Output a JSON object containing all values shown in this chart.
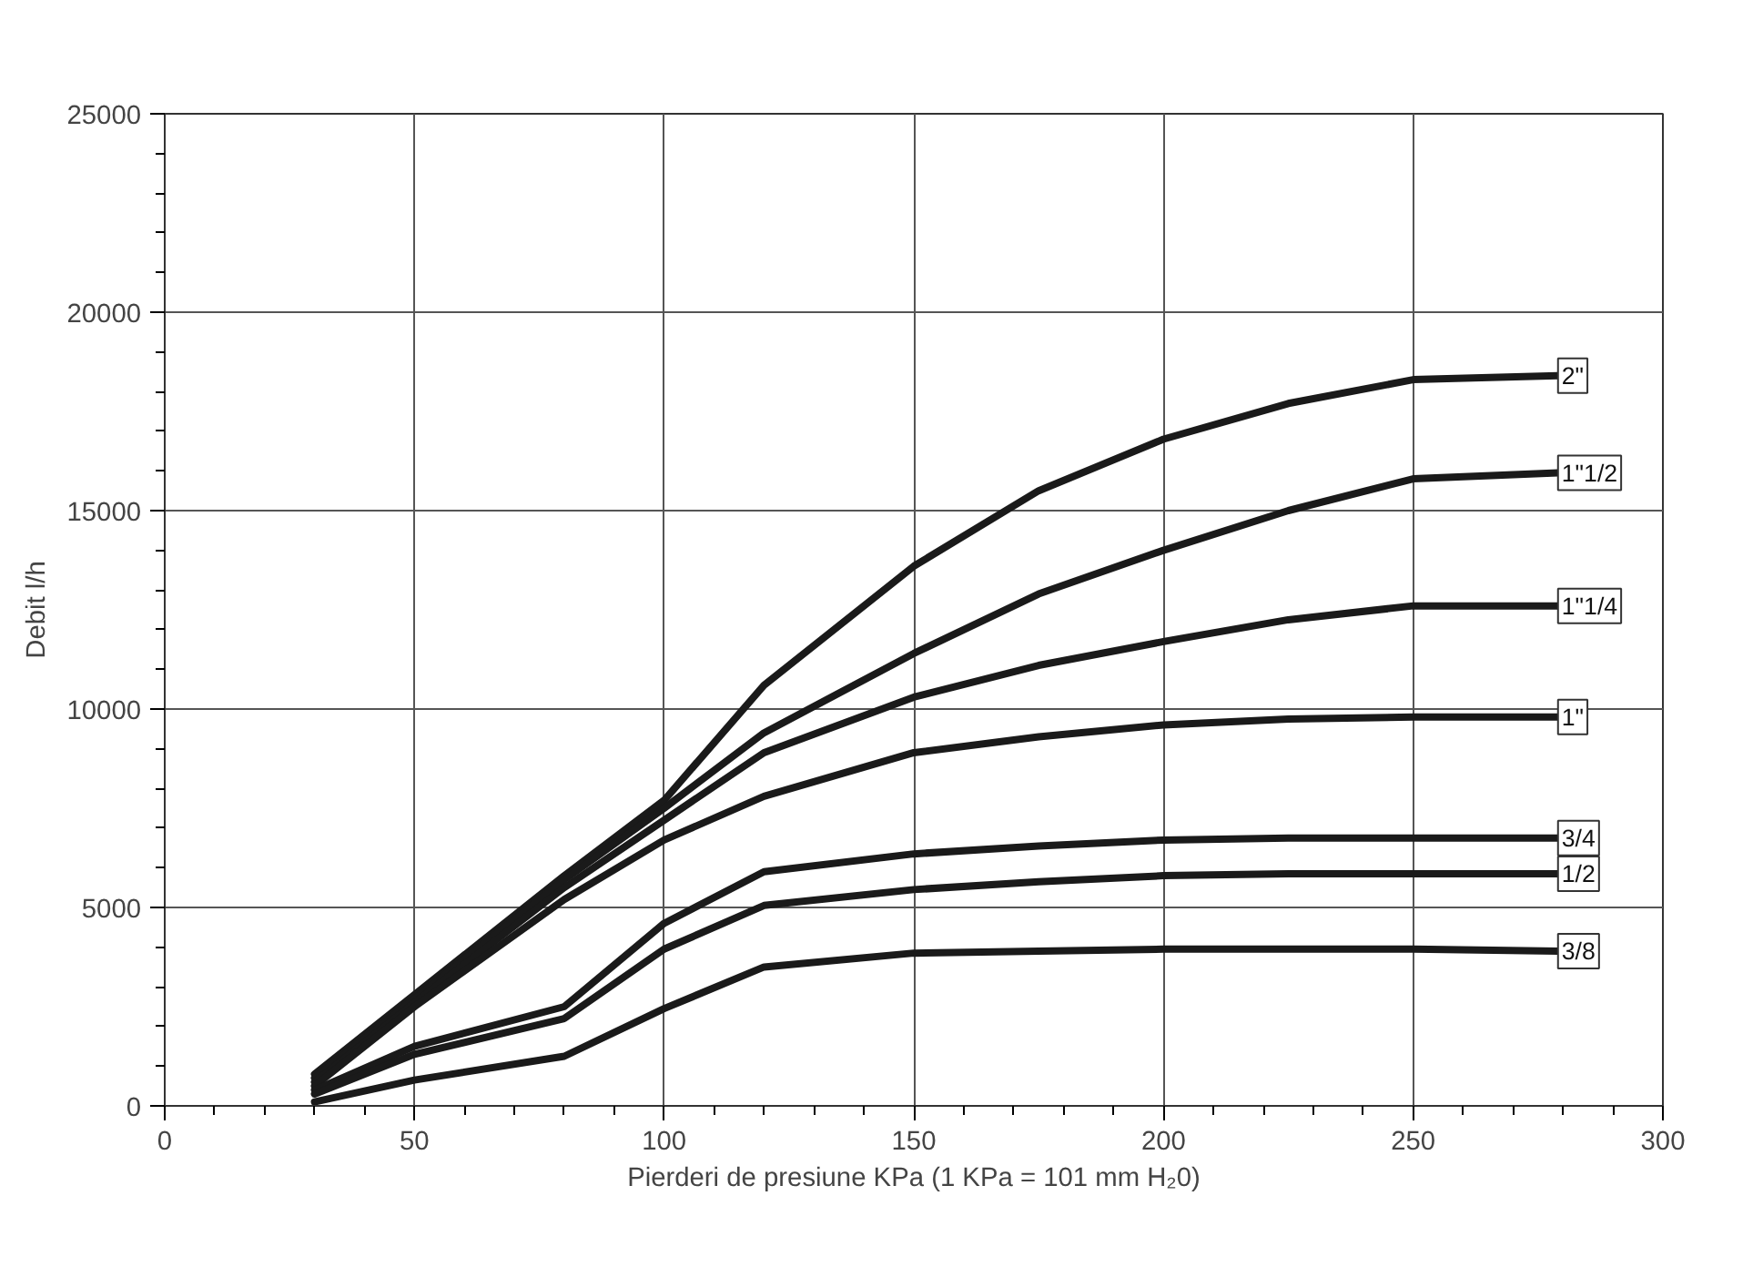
{
  "chart_data": {
    "type": "line",
    "xlabel": "Pierderi de presiune KPa (1 KPa = 101 mm H₂0)",
    "ylabel": "Debit l/h",
    "x": [
      30,
      50,
      80,
      100,
      120,
      150,
      175,
      200,
      225,
      250,
      279
    ],
    "series": [
      {
        "name": "2\"",
        "color": "#1a1a1a",
        "values": [
          800,
          2800,
          5800,
          7700,
          10600,
          13600,
          15500,
          16800,
          17700,
          18300,
          18400
        ]
      },
      {
        "name": "1\"1/2",
        "color": "#1a1a1a",
        "values": [
          700,
          2700,
          5700,
          7500,
          9400,
          11400,
          12900,
          14000,
          15000,
          15800,
          15950
        ]
      },
      {
        "name": "1\"1/4",
        "color": "#1a1a1a",
        "values": [
          600,
          2600,
          5500,
          7200,
          8900,
          10300,
          11100,
          11700,
          12250,
          12600,
          12600
        ]
      },
      {
        "name": "1\"",
        "color": "#1a1a1a",
        "values": [
          500,
          2500,
          5200,
          6700,
          7800,
          8900,
          9300,
          9600,
          9750,
          9800,
          9800
        ]
      },
      {
        "name": "3/4",
        "color": "#1a1a1a",
        "values": [
          400,
          1500,
          2500,
          4600,
          5900,
          6350,
          6550,
          6700,
          6750,
          6750,
          6750
        ]
      },
      {
        "name": "1/2",
        "color": "#1a1a1a",
        "values": [
          300,
          1300,
          2200,
          3950,
          5050,
          5450,
          5650,
          5800,
          5850,
          5850,
          5850
        ]
      },
      {
        "name": "3/8",
        "color": "#1a1a1a",
        "values": [
          100,
          650,
          1250,
          2450,
          3500,
          3850,
          3900,
          3950,
          3950,
          3950,
          3900
        ]
      }
    ],
    "xlim": [
      0,
      300
    ],
    "ylim": [
      0,
      25000
    ],
    "xticks": [
      0,
      50,
      100,
      150,
      200,
      250,
      300
    ],
    "yticks": [
      0,
      5000,
      10000,
      15000,
      20000,
      25000
    ],
    "grid": true,
    "legend": false,
    "marker": "none",
    "line_style": "solid"
  }
}
